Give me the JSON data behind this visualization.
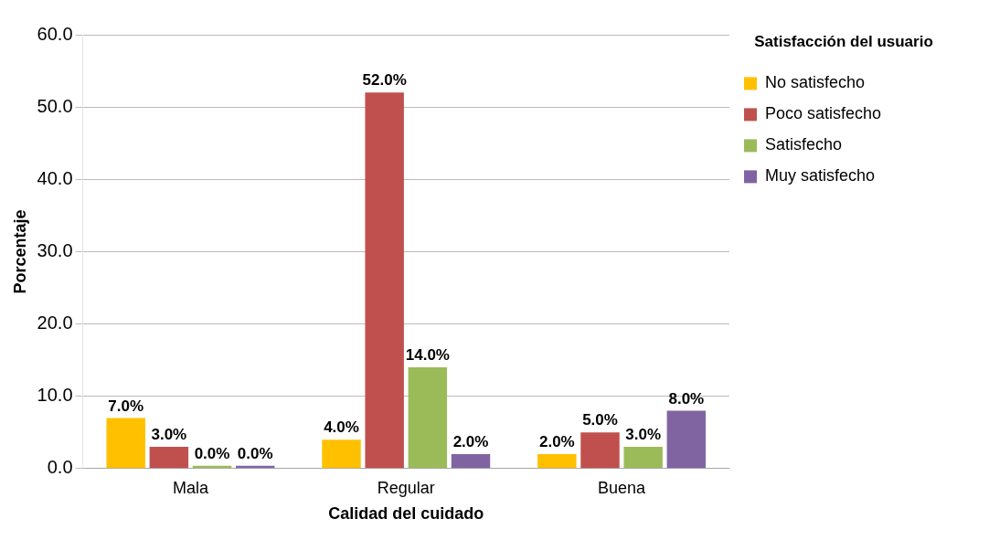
{
  "chart_data": {
    "type": "bar",
    "xlabel": "Calidad del cuidado",
    "ylabel": "Porcentaje",
    "legend_title": "Satisfacción del usuario",
    "categories": [
      "Mala",
      "Regular",
      "Buena"
    ],
    "series": [
      {
        "name": "No satisfecho",
        "color": "#ffc000",
        "values": [
          7,
          4,
          2
        ],
        "value_labels": [
          "7.0%",
          "4.0%",
          "2.0%"
        ]
      },
      {
        "name": "Poco satisfecho",
        "color": "#c0504d",
        "values": [
          3,
          52,
          5
        ],
        "value_labels": [
          "3.0%",
          "52.0%",
          "5.0%"
        ]
      },
      {
        "name": "Satisfecho",
        "color": "#9bbb59",
        "values": [
          0,
          14,
          3
        ],
        "value_labels": [
          "0.0%",
          "14.0%",
          "3.0%"
        ]
      },
      {
        "name": "Muy satisfecho",
        "color": "#8064a2",
        "values": [
          0,
          2,
          8
        ],
        "value_labels": [
          "0.0%",
          "2.0%",
          "8.0%"
        ]
      }
    ],
    "ylim": [
      0,
      60
    ],
    "yticks": [
      {
        "value": 0,
        "label": "0.0"
      },
      {
        "value": 10,
        "label": "10.0"
      },
      {
        "value": 20,
        "label": "20.0"
      },
      {
        "value": 30,
        "label": "30.0"
      },
      {
        "value": 40,
        "label": "40.0"
      },
      {
        "value": 50,
        "label": "50.0"
      },
      {
        "value": 60,
        "label": "60.0"
      }
    ],
    "grid": "y",
    "legend": "top right"
  }
}
